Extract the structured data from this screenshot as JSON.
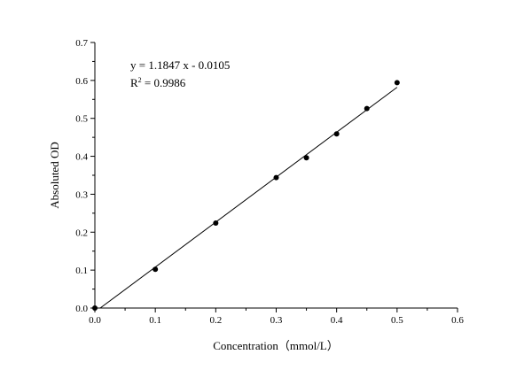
{
  "chart_data": {
    "type": "scatter",
    "title": "",
    "xlabel": "Concentration（mmol/L）",
    "ylabel": "Absoluted OD",
    "xlim": [
      0.0,
      0.6
    ],
    "ylim": [
      0.0,
      0.7
    ],
    "x_ticks": [
      "0.0",
      "0.1",
      "0.2",
      "0.3",
      "0.4",
      "0.5",
      "0.6"
    ],
    "y_ticks": [
      "0.0",
      "0.1",
      "0.2",
      "0.3",
      "0.4",
      "0.5",
      "0.6",
      "0.7"
    ],
    "grid": false,
    "series": [
      {
        "x": [
          0.0,
          0.1,
          0.2,
          0.3,
          0.35,
          0.4,
          0.45,
          0.5
        ],
        "y": [
          0.0,
          0.102,
          0.224,
          0.344,
          0.396,
          0.459,
          0.526,
          0.594
        ],
        "marker_color": "#000000"
      }
    ],
    "fit_line": {
      "slope": 1.1847,
      "intercept": -0.0105,
      "x_range": [
        0.0,
        0.5
      ],
      "color": "#000000"
    },
    "annotations": {
      "equation": "y = 1.1847 x - 0.0105",
      "r2_prefix": "R",
      "r2_superscript": "2",
      "r2_value": " = 0.9986"
    }
  }
}
